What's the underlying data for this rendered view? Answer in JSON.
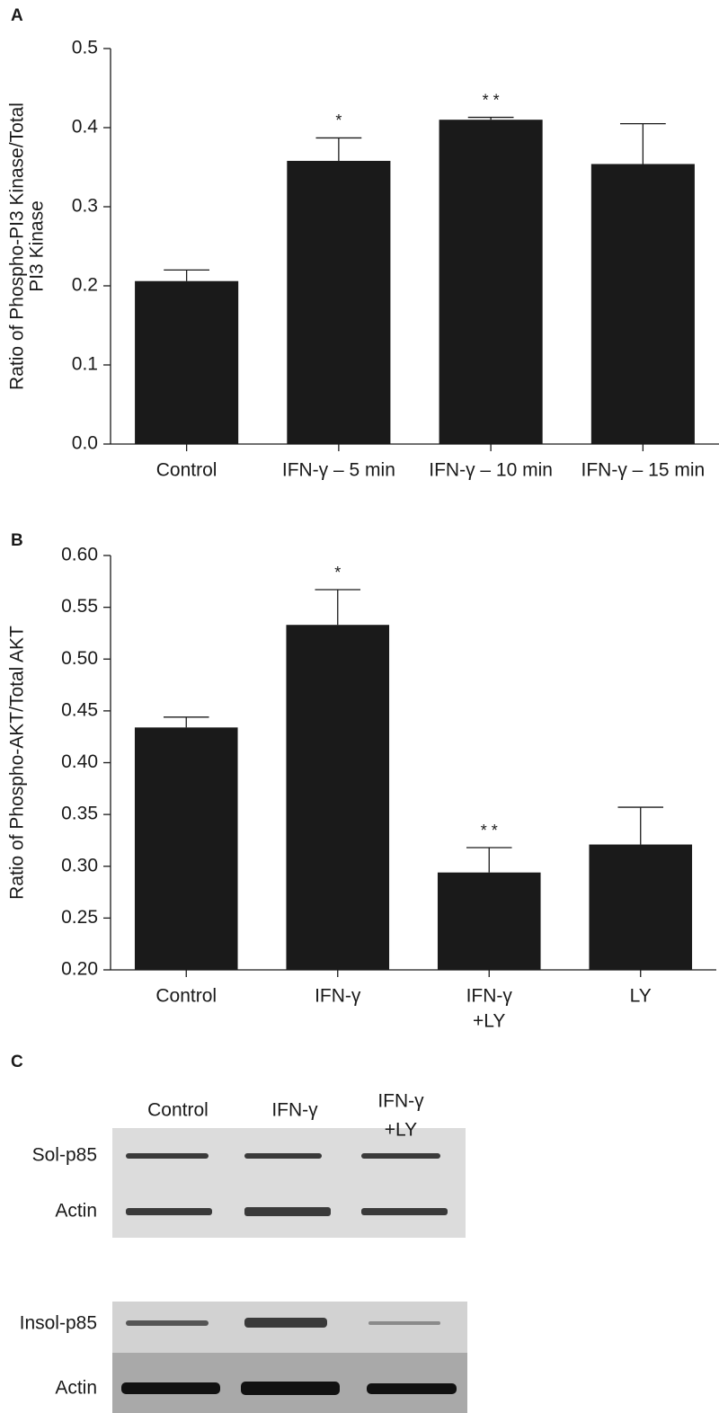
{
  "chart_data": [
    {
      "type": "bar",
      "panel": "A",
      "y_label": [
        "Ratio of Phospho-PI3 Kinase/Total",
        "PI3 Kinase"
      ],
      "categories": [
        "Control",
        "IFN-γ – 5 min",
        "IFN-γ – 10 min",
        "IFN-γ – 15 min"
      ],
      "values": [
        0.206,
        0.358,
        0.41,
        0.354
      ],
      "errors": [
        0.014,
        0.029,
        0.003,
        0.051
      ],
      "annotations": [
        null,
        "*",
        "* *",
        null
      ],
      "color": "#1a1a1a",
      "ylim": [
        0,
        0.5
      ],
      "yticks": [
        {
          "value": 0,
          "label": "0.0"
        },
        0.1,
        0.2,
        0.3,
        0.4,
        0.5
      ]
    },
    {
      "type": "bar",
      "panel": "B",
      "y_label": "Ratio of Phospho-AKT/Total AKT",
      "categories": [
        "Control",
        "IFN-γ",
        [
          "IFN-γ",
          "+LY"
        ],
        "LY"
      ],
      "values": [
        0.434,
        0.533,
        0.294,
        0.321
      ],
      "errors": [
        0.01,
        0.034,
        0.024,
        0.036
      ],
      "annotations": [
        null,
        "*",
        "* *",
        null
      ],
      "color": "#1a1a1a",
      "ylim": [
        0.2,
        0.6
      ],
      "yticks": [
        {
          "value": 0.2,
          "label": "0.20"
        },
        0.25,
        {
          "value": 0.3,
          "label": "0.30"
        },
        0.35,
        {
          "value": 0.4,
          "label": "0.40"
        },
        0.45,
        {
          "value": 0.5,
          "label": "0.50"
        },
        0.55,
        {
          "value": 0.6,
          "label": "0.60"
        }
      ]
    }
  ],
  "blot": {
    "panel": "C",
    "columns": [
      [
        "Control"
      ],
      [
        "IFN-γ"
      ],
      [
        "IFN-γ",
        "+LY"
      ]
    ],
    "rows": [
      "Sol-p85",
      "Actin",
      "Insol-p85",
      "Actin"
    ]
  }
}
